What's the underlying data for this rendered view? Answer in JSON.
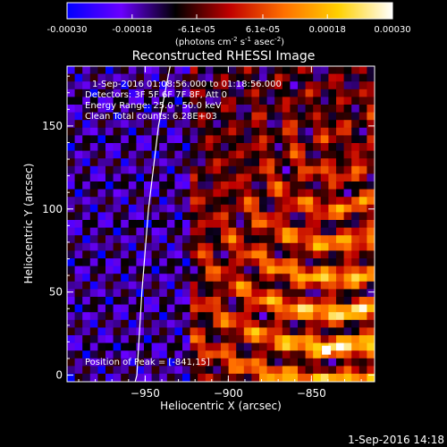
{
  "colorbar": {
    "tick_labels": [
      "-0.00030",
      "-0.00018",
      "-6.1e-05",
      "6.1e-05",
      "0.00018",
      "0.00030"
    ],
    "tick_values": [
      -0.0003,
      -0.00018,
      -6.1e-05,
      6.1e-05,
      0.00018,
      0.0003
    ],
    "range": [
      -0.0003,
      0.0003
    ],
    "unit_label": "(photons cm",
    "unit_exp1": "-2",
    "unit_mid": " s",
    "unit_exp2": "-1",
    "unit_mid2": " asec",
    "unit_exp3": "-2",
    "unit_end": ")",
    "colors": [
      "#0000ff",
      "#6a00ff",
      "#000000",
      "#c00000",
      "#ff7000",
      "#ffd000",
      "#ffffff"
    ]
  },
  "plot": {
    "title": "Reconstructed RHESSI Image",
    "annotations": [
      "1-Sep-2016 01:08:56.000 to 01:18:56.000",
      "Detectors: 3F 5F 6F 7F 8F, Att 0",
      "Energy Range: 25.0 - 50.0 keV",
      "Clean      Total counts: 6.28E+03"
    ],
    "peak_label": "Position of Peak = [-841,15]"
  },
  "footer": {
    "timestamp": "1-Sep-2016 14:18"
  },
  "chart_data": {
    "type": "heatmap",
    "title": "Reconstructed RHESSI Image",
    "xlabel": "Heliocentric X (arcsec)",
    "ylabel": "Heliocentric Y (arcsec)",
    "xlim": [
      -997,
      -812
    ],
    "ylim": [
      -4,
      186
    ],
    "xticks": [
      -950,
      -900,
      -850
    ],
    "xtick_labels": [
      "−950",
      "−900",
      "−850"
    ],
    "yticks": [
      0,
      50,
      100,
      150
    ],
    "ytick_labels": [
      "0",
      "50",
      "100",
      "150"
    ],
    "limb_curve": [
      [
        -935,
        186
      ],
      [
        -942,
        150
      ],
      [
        -948,
        100
      ],
      [
        -952,
        50
      ],
      [
        -955,
        0
      ],
      [
        -956,
        -4
      ]
    ],
    "peak": [
      -841,
      15
    ],
    "grid": false,
    "legend": "none"
  }
}
